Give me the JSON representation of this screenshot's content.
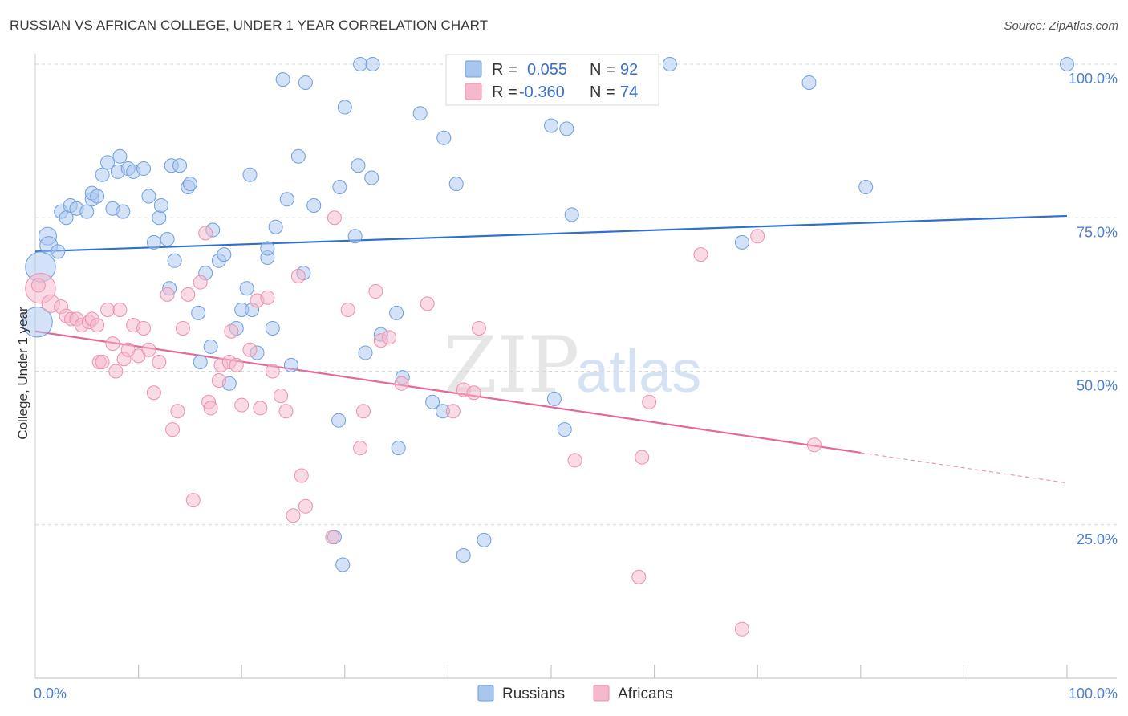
{
  "title": "RUSSIAN VS AFRICAN COLLEGE, UNDER 1 YEAR CORRELATION CHART",
  "source": "Source: ZipAtlas.com",
  "watermark": {
    "zip": "ZIP",
    "atlas": "atlas"
  },
  "colors": {
    "russians_fill": "#a9c6ef",
    "russians_stroke": "#6f9ede",
    "russians_line": "#2f6fcf",
    "africans_fill": "#f6b8cc",
    "africans_stroke": "#ec8fae",
    "africans_line": "#e4689a",
    "tick_text": "#4a7fd0",
    "grid": "#d6d6d6"
  },
  "legend": {
    "r_label": "R =",
    "n_label": "N =",
    "rows": [
      {
        "series": "russians",
        "r": "0.055",
        "n": "92"
      },
      {
        "series": "africans",
        "r": "-0.360",
        "n": "74"
      }
    ]
  },
  "bottom_legend": [
    "Russians",
    "Africans"
  ],
  "chart_data": {
    "type": "scatter",
    "title": "RUSSIAN VS AFRICAN COLLEGE, UNDER 1 YEAR CORRELATION CHART",
    "xlabel": "",
    "ylabel": "College, Under 1 year",
    "xlim": [
      0,
      100
    ],
    "ylim": [
      0,
      103
    ],
    "x_ticks": [
      {
        "value": 0,
        "label": "0.0%"
      },
      {
        "value": 100,
        "label": "100.0%"
      }
    ],
    "y_ticks": [
      {
        "value": 25,
        "label": "25.0%"
      },
      {
        "value": 50,
        "label": "50.0%"
      },
      {
        "value": 75,
        "label": "75.0%"
      },
      {
        "value": 100,
        "label": "100.0%"
      }
    ],
    "series": [
      {
        "name": "Russians",
        "r": 0.055,
        "n": 92,
        "trend": {
          "x0": 0,
          "y0": 69.5,
          "x1": 100,
          "y1": 75.3,
          "solid_until": 100
        },
        "points": [
          [
            0.2,
            58,
            2.2
          ],
          [
            0.5,
            67,
            2.2
          ],
          [
            1.2,
            72,
            1.3
          ],
          [
            1.3,
            70.5,
            1.3
          ],
          [
            2.2,
            69.5,
            1
          ],
          [
            2.5,
            76,
            1
          ],
          [
            3,
            75,
            1
          ],
          [
            3.4,
            77,
            1
          ],
          [
            4,
            76.5,
            1
          ],
          [
            5,
            76,
            1
          ],
          [
            5.5,
            78,
            1
          ],
          [
            5.5,
            79,
            1
          ],
          [
            6,
            78.5,
            1
          ],
          [
            6.5,
            82,
            1
          ],
          [
            7,
            84,
            1
          ],
          [
            7.5,
            76.5,
            1
          ],
          [
            8,
            82.5,
            1
          ],
          [
            8.2,
            85,
            1
          ],
          [
            8.5,
            76,
            1
          ],
          [
            9,
            83,
            1
          ],
          [
            9.5,
            82.5,
            1
          ],
          [
            10.5,
            83,
            1
          ],
          [
            11,
            78.5,
            1
          ],
          [
            11.5,
            71,
            1
          ],
          [
            12,
            75,
            1
          ],
          [
            12.2,
            77,
            1
          ],
          [
            12.8,
            71.5,
            1
          ],
          [
            13,
            63.5,
            1
          ],
          [
            13.2,
            83.5,
            1
          ],
          [
            13.5,
            68,
            1
          ],
          [
            14,
            83.5,
            1
          ],
          [
            14.8,
            80,
            1
          ],
          [
            15,
            80.5,
            1
          ],
          [
            15.8,
            59.5,
            1
          ],
          [
            16,
            51.5,
            1
          ],
          [
            16.5,
            66,
            1
          ],
          [
            17,
            54,
            1
          ],
          [
            17.2,
            73,
            1
          ],
          [
            17.8,
            68,
            1
          ],
          [
            18.3,
            69,
            1
          ],
          [
            18.8,
            48,
            1
          ],
          [
            19.5,
            57,
            1
          ],
          [
            20,
            60,
            1
          ],
          [
            20.5,
            63.5,
            1
          ],
          [
            20.8,
            82,
            1
          ],
          [
            21,
            60,
            1
          ],
          [
            21.5,
            53,
            1
          ],
          [
            22.5,
            68.5,
            1
          ],
          [
            22.5,
            70,
            1
          ],
          [
            23,
            57,
            1
          ],
          [
            23.3,
            73.5,
            1
          ],
          [
            24,
            97.5,
            1
          ],
          [
            24.4,
            78,
            1
          ],
          [
            24.8,
            51,
            1
          ],
          [
            25.5,
            85,
            1
          ],
          [
            26,
            66,
            1
          ],
          [
            26.2,
            97,
            1
          ],
          [
            27,
            77,
            1
          ],
          [
            29,
            23,
            1
          ],
          [
            29.4,
            42,
            1
          ],
          [
            29.5,
            80,
            1
          ],
          [
            29.8,
            18.5,
            1
          ],
          [
            30,
            93,
            1
          ],
          [
            31,
            72,
            1
          ],
          [
            31.3,
            83.5,
            1
          ],
          [
            31.5,
            100,
            1
          ],
          [
            32,
            53,
            1
          ],
          [
            32.6,
            81.5,
            1
          ],
          [
            32.7,
            100,
            1
          ],
          [
            33.5,
            56,
            1
          ],
          [
            35,
            59.5,
            1
          ],
          [
            35.2,
            37.5,
            1
          ],
          [
            35.6,
            49,
            1
          ],
          [
            37.3,
            92,
            1
          ],
          [
            38.5,
            45,
            1
          ],
          [
            39.5,
            43.5,
            1
          ],
          [
            39.6,
            88,
            1
          ],
          [
            40.8,
            80.5,
            1
          ],
          [
            41.5,
            20,
            1
          ],
          [
            43.5,
            22.5,
            1
          ],
          [
            47,
            100,
            1.2
          ],
          [
            50,
            90,
            1
          ],
          [
            50.3,
            45.5,
            1
          ],
          [
            51.3,
            40.5,
            1
          ],
          [
            51.5,
            89.5,
            1
          ],
          [
            52,
            75.5,
            1
          ],
          [
            59.3,
            100,
            1.2
          ],
          [
            61.5,
            100,
            1
          ],
          [
            68.5,
            71,
            1
          ],
          [
            75,
            97,
            1
          ],
          [
            80.5,
            80,
            1
          ],
          [
            100,
            100,
            1
          ]
        ]
      },
      {
        "name": "Africans",
        "r": -0.36,
        "n": 74,
        "trend": {
          "x0": 0,
          "y0": 56.5,
          "x1": 100,
          "y1": 31.8,
          "solid_until": 80
        },
        "points": [
          [
            0.5,
            63.5,
            2.2
          ],
          [
            1.5,
            61,
            1.3
          ],
          [
            2.5,
            60.5,
            1
          ],
          [
            3,
            59,
            1
          ],
          [
            3.5,
            58.5,
            1
          ],
          [
            4,
            58.5,
            1
          ],
          [
            4.5,
            57.5,
            1
          ],
          [
            5.2,
            58,
            1
          ],
          [
            5.5,
            58.5,
            1
          ],
          [
            6,
            57.5,
            1
          ],
          [
            6.2,
            51.5,
            1
          ],
          [
            6.5,
            51.5,
            1
          ],
          [
            7,
            60,
            1
          ],
          [
            7.5,
            54.5,
            1
          ],
          [
            7.8,
            50,
            1
          ],
          [
            8.2,
            60,
            1
          ],
          [
            8.6,
            52,
            1
          ],
          [
            9,
            53.5,
            1
          ],
          [
            9.5,
            57.5,
            1
          ],
          [
            10,
            52.5,
            1
          ],
          [
            10.5,
            57,
            1
          ],
          [
            11,
            53.5,
            1
          ],
          [
            11.5,
            46.5,
            1
          ],
          [
            12,
            51.5,
            1
          ],
          [
            12.8,
            62.5,
            1
          ],
          [
            13.3,
            40.5,
            1
          ],
          [
            13.8,
            43.5,
            1
          ],
          [
            14.3,
            57,
            1
          ],
          [
            14.8,
            62.5,
            1
          ],
          [
            15.3,
            29,
            1
          ],
          [
            16,
            64.5,
            1
          ],
          [
            16.5,
            72.5,
            1
          ],
          [
            16.8,
            45,
            1
          ],
          [
            17,
            44,
            1
          ],
          [
            17.8,
            48.5,
            1
          ],
          [
            18,
            51,
            1
          ],
          [
            18.8,
            51.5,
            1
          ],
          [
            19,
            56.5,
            1
          ],
          [
            19.5,
            51,
            1
          ],
          [
            20,
            44.5,
            1
          ],
          [
            20.8,
            53.5,
            1
          ],
          [
            21.5,
            61.5,
            1
          ],
          [
            21.8,
            44,
            1
          ],
          [
            22.5,
            62,
            1
          ],
          [
            23,
            50,
            1
          ],
          [
            23.8,
            46,
            1
          ],
          [
            24.3,
            43.5,
            1
          ],
          [
            25,
            26.5,
            1
          ],
          [
            25.5,
            65.5,
            1
          ],
          [
            25.8,
            33,
            1
          ],
          [
            26.2,
            28,
            1
          ],
          [
            28.8,
            23,
            1
          ],
          [
            29,
            75,
            1
          ],
          [
            30.3,
            60,
            1
          ],
          [
            31.5,
            37.5,
            1
          ],
          [
            31.8,
            43.5,
            1
          ],
          [
            33,
            63,
            1
          ],
          [
            33.5,
            55,
            1
          ],
          [
            34.3,
            55.5,
            1
          ],
          [
            35.5,
            48,
            1
          ],
          [
            38,
            61,
            1
          ],
          [
            40.5,
            43.5,
            1
          ],
          [
            41.5,
            47,
            1
          ],
          [
            42.5,
            46.5,
            1
          ],
          [
            43,
            57,
            1
          ],
          [
            52.3,
            35.5,
            1
          ],
          [
            58.5,
            16.5,
            1
          ],
          [
            58.8,
            36,
            1
          ],
          [
            59.5,
            45,
            1
          ],
          [
            64.5,
            69,
            1
          ],
          [
            68.5,
            8,
            1
          ],
          [
            70,
            72,
            1
          ],
          [
            75.5,
            38,
            1
          ],
          [
            0.3,
            64,
            1
          ]
        ]
      }
    ]
  }
}
